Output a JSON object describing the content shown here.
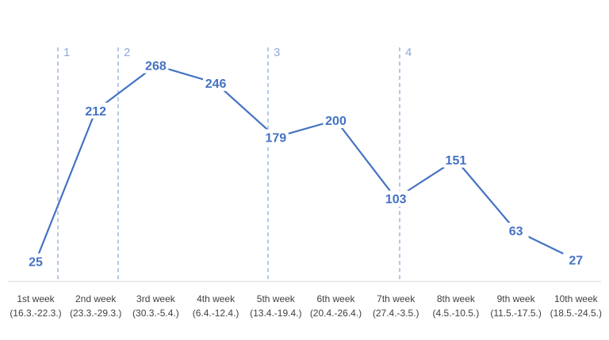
{
  "chart_data": {
    "type": "line",
    "title": "",
    "xlabel": "",
    "ylabel": "",
    "ylim": [
      0,
      300
    ],
    "grid": false,
    "legend": "none",
    "colors": {
      "line": "#4472C4",
      "marker_line": "#8FAADC",
      "axis": "#D9D9D9",
      "tick_text": "#404040"
    },
    "categories": [
      [
        "1st week",
        "(16.3.-22.3.)"
      ],
      [
        "2nd week",
        "(23.3.-29.3.)"
      ],
      [
        "3rd week",
        "(30.3.-5.4.)"
      ],
      [
        "4th week",
        "(6.4.-12.4.)"
      ],
      [
        "5th week",
        "(13.4.-19.4.)"
      ],
      [
        "6th week",
        "(20.4.-26.4.)"
      ],
      [
        "7th week",
        "(27.4.-3.5.)"
      ],
      [
        "8th week",
        "(4.5.-10.5.)"
      ],
      [
        "9th week",
        "(11.5.-17.5.)"
      ],
      [
        "10th week",
        "(18.5.-24.5.)"
      ]
    ],
    "series": [
      {
        "values": [
          25,
          212,
          268,
          246,
          179,
          200,
          103,
          151,
          63,
          27
        ]
      }
    ],
    "markers": [
      {
        "label": "1",
        "x": 0.5
      },
      {
        "label": "2",
        "x": 1.5
      },
      {
        "label": "3",
        "x": 4.0
      },
      {
        "label": "4",
        "x": 6.2
      }
    ]
  }
}
